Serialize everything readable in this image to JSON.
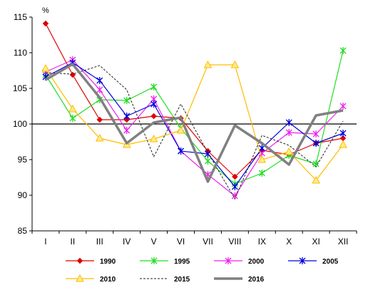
{
  "chart_data": {
    "type": "line",
    "unit_label": "%",
    "x": [
      "I",
      "II",
      "III",
      "IV",
      "V",
      "VI",
      "VII",
      "VIII",
      "IX",
      "X",
      "XI",
      "XII"
    ],
    "ylim": [
      85,
      115
    ],
    "yticks": [
      85,
      90,
      95,
      100,
      105,
      110,
      115
    ],
    "reference_line": 100,
    "grid": false,
    "legend_position": "bottom",
    "series": [
      {
        "name": "1990",
        "color": "#e00000",
        "marker": "diamond",
        "style": "solid",
        "values": [
          114.1,
          106.9,
          100.6,
          100.6,
          101.1,
          100.8,
          96.2,
          92.6,
          96.3,
          95.7,
          97.3,
          98.0
        ]
      },
      {
        "name": "1995",
        "color": "#22dd22",
        "marker": "star",
        "style": "solid",
        "values": [
          106.9,
          100.8,
          103.4,
          103.3,
          105.2,
          99.4,
          94.8,
          91.6,
          93.1,
          95.6,
          94.4,
          110.3
        ]
      },
      {
        "name": "2000",
        "color": "#ee22ee",
        "marker": "star",
        "style": "solid",
        "values": [
          107.3,
          109.0,
          104.8,
          99.1,
          103.5,
          96.2,
          92.9,
          89.9,
          95.9,
          98.8,
          98.6,
          102.5
        ]
      },
      {
        "name": "2005",
        "color": "#0000dd",
        "marker": "star",
        "style": "solid",
        "values": [
          106.6,
          108.6,
          106.1,
          101.1,
          102.8,
          96.2,
          95.8,
          91.2,
          96.6,
          100.2,
          97.3,
          98.7
        ]
      },
      {
        "name": "2010",
        "color": "#ffbb00",
        "marker": "triangle",
        "style": "solid",
        "values": [
          107.8,
          102.1,
          98.0,
          97.1,
          97.9,
          99.1,
          108.3,
          108.3,
          95.0,
          96.1,
          92.1,
          97.1
        ]
      },
      {
        "name": "2015",
        "color": "#222222",
        "marker": "none",
        "style": "dashed",
        "values": [
          107.2,
          107.0,
          108.2,
          104.8,
          95.4,
          102.8,
          96.0,
          89.5,
          98.4,
          97.0,
          94.0,
          100.4
        ]
      },
      {
        "name": "2016",
        "color": "#808080",
        "marker": "none",
        "style": "thick",
        "values": [
          106.2,
          108.4,
          103.7,
          97.3,
          100.2,
          100.9,
          91.9,
          99.8,
          97.3,
          94.3,
          101.2,
          101.9
        ]
      }
    ]
  }
}
